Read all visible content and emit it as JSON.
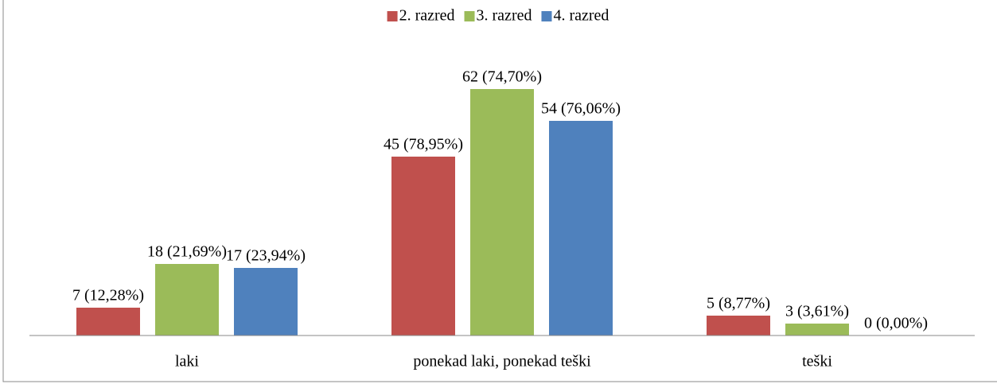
{
  "chart_data": {
    "type": "bar",
    "categories": [
      "laki",
      "ponekad laki, ponekad teški",
      "teški"
    ],
    "series": [
      {
        "name": "2. razred",
        "color": "#c0504d",
        "values": [
          7,
          45,
          5
        ],
        "value_labels": [
          "7 (12,28%)",
          "45 (78,95%)",
          "5 (8,77%)"
        ]
      },
      {
        "name": "3. razred",
        "color": "#9bbb59",
        "values": [
          18,
          62,
          3
        ],
        "value_labels": [
          "18 (21,69%)",
          "62 (74,70%)",
          "3 (3,61%)"
        ]
      },
      {
        "name": "4. razred",
        "color": "#4f81bd",
        "values": [
          17,
          54,
          0
        ],
        "value_labels": [
          "17 (23,94%)",
          "54 (76,06%)",
          "0 (0,00%)"
        ]
      }
    ],
    "ylim": [
      0,
      70
    ],
    "legend": "top"
  }
}
